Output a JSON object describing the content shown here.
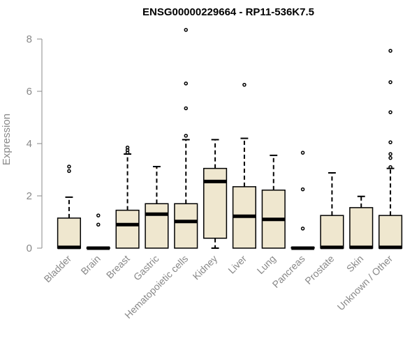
{
  "chart_data": {
    "type": "box",
    "title": "ENSG00000229664 - RP11-536K7.5",
    "ylabel": "Expression",
    "xlabel": "",
    "ylim": [
      0,
      8.3
    ],
    "yticks": [
      0,
      2,
      4,
      6,
      8
    ],
    "grid": false,
    "legend": "none",
    "colors": {
      "box_fill": "#efe7cf",
      "box_stroke": "#000000",
      "axis": "#888888",
      "tick_label": "#888888",
      "title": "#000000"
    },
    "categories": [
      "Bladder",
      "Brain",
      "Breast",
      "Gastric",
      "Hematopoietic cells",
      "Kidney",
      "Liver",
      "Lung",
      "Pancreas",
      "Prostate",
      "Skin",
      "Unknown / Other"
    ],
    "boxes": [
      {
        "category": "Bladder",
        "whisker_low": 0,
        "q1": 0,
        "median": 0.03,
        "q3": 1.15,
        "whisker_high": 1.95,
        "outliers": [
          2.95,
          3.12
        ]
      },
      {
        "category": "Brain",
        "whisker_low": 0,
        "q1": 0,
        "median": 0.0,
        "q3": 0.02,
        "whisker_high": 0.02,
        "outliers": [
          0.9,
          1.25
        ]
      },
      {
        "category": "Breast",
        "whisker_low": 0,
        "q1": 0,
        "median": 0.9,
        "q3": 1.45,
        "whisker_high": 3.6,
        "outliers": [
          3.65,
          3.75,
          3.85
        ]
      },
      {
        "category": "Gastric",
        "whisker_low": 0,
        "q1": 0,
        "median": 1.3,
        "q3": 1.7,
        "whisker_high": 3.12,
        "outliers": []
      },
      {
        "category": "Hematopoietic cells",
        "whisker_low": 0,
        "q1": 0,
        "median": 1.02,
        "q3": 1.7,
        "whisker_high": 4.15,
        "outliers": [
          4.3,
          5.35,
          6.3,
          8.35
        ]
      },
      {
        "category": "Kidney",
        "whisker_low": 0,
        "q1": 0.38,
        "median": 2.55,
        "q3": 3.05,
        "whisker_high": 4.15,
        "outliers": []
      },
      {
        "category": "Liver",
        "whisker_low": 0,
        "q1": 0,
        "median": 1.22,
        "q3": 2.35,
        "whisker_high": 4.2,
        "outliers": [
          6.25
        ]
      },
      {
        "category": "Lung",
        "whisker_low": 0,
        "q1": 0,
        "median": 1.1,
        "q3": 2.22,
        "whisker_high": 3.55,
        "outliers": []
      },
      {
        "category": "Pancreas",
        "whisker_low": 0,
        "q1": 0,
        "median": 0.0,
        "q3": 0.03,
        "whisker_high": 0.03,
        "outliers": [
          0.75,
          2.25,
          3.65
        ]
      },
      {
        "category": "Prostate",
        "whisker_low": 0,
        "q1": 0,
        "median": 0.03,
        "q3": 1.25,
        "whisker_high": 2.88,
        "outliers": []
      },
      {
        "category": "Skin",
        "whisker_low": 0,
        "q1": 0,
        "median": 0.03,
        "q3": 1.55,
        "whisker_high": 1.98,
        "outliers": []
      },
      {
        "category": "Unknown / Other",
        "whisker_low": 0,
        "q1": 0,
        "median": 0.03,
        "q3": 1.25,
        "whisker_high": 3.05,
        "outliers": [
          3.1,
          3.45,
          3.6,
          4.05,
          5.2,
          6.35,
          7.55
        ]
      }
    ]
  }
}
